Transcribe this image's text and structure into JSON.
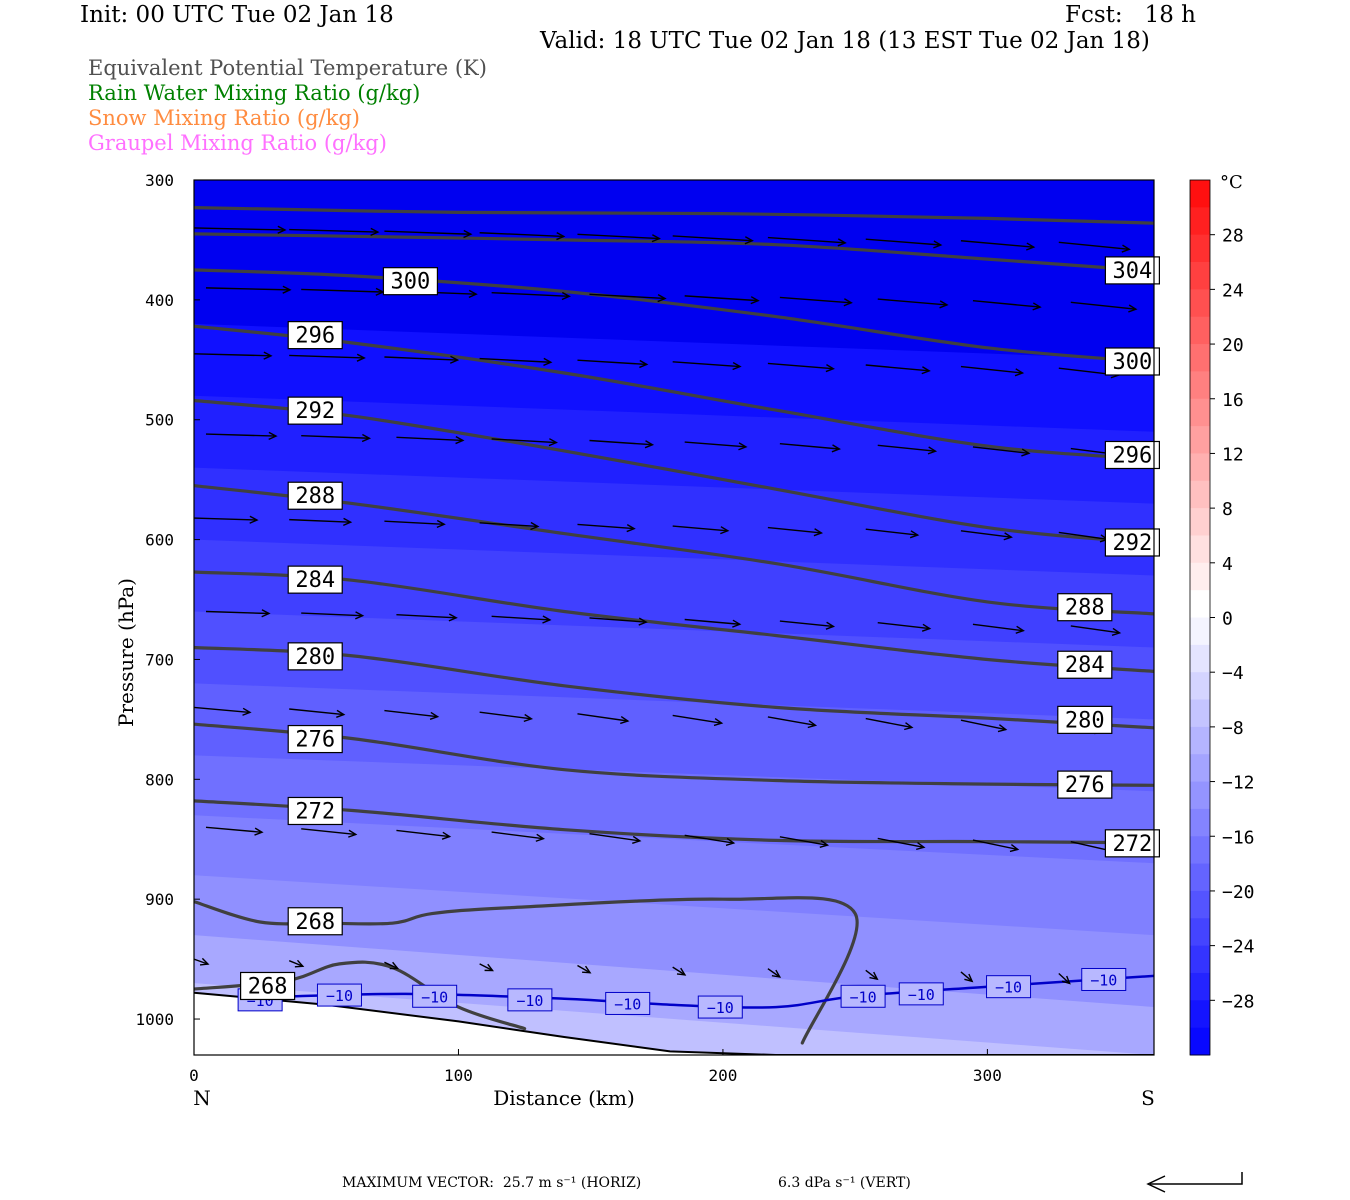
{
  "header": {
    "init": "Init: 00 UTC Tue 02 Jan 18",
    "fcst": "Fcst:   18 h",
    "valid": "Valid: 18 UTC Tue 02 Jan 18 (13 EST Tue 02 Jan 18)"
  },
  "legend": [
    {
      "label": "Equivalent Potential Temperature (K)",
      "color": "#505050"
    },
    {
      "label": "Rain Water Mixing Ratio (g/kg)",
      "color": "#008000"
    },
    {
      "label": "Snow Mixing Ratio (g/kg)",
      "color": "#ff8c40"
    },
    {
      "label": "Graupel Mixing Ratio (g/kg)",
      "color": "#ff70ff"
    }
  ],
  "footer": {
    "max_vector": "MAXIMUM VECTOR:  25.7 m s⁻¹ (HORIZ)",
    "vert": "6.3 dPa s⁻¹ (VERT)"
  },
  "chart_data": {
    "type": "cross-section",
    "xlabel": "Distance (km)",
    "ylabel": "Pressure (hPa)",
    "xlim": [
      0,
      363
    ],
    "ylim": [
      1030,
      300
    ],
    "y_log": false,
    "x_ticks": [
      0,
      100,
      200,
      300
    ],
    "y_ticks": [
      300,
      400,
      500,
      600,
      700,
      800,
      900,
      1000
    ],
    "x_end_labels": {
      "left": "N",
      "right": "S"
    },
    "colorbar": {
      "unit": "°C",
      "tick_labels": [
        "28",
        "24",
        "20",
        "16",
        "12",
        "8",
        "4",
        "0",
        "−4",
        "−8",
        "−12",
        "−16",
        "−20",
        "−24",
        "−28"
      ],
      "tick_values": [
        28,
        24,
        20,
        16,
        12,
        8,
        4,
        0,
        -4,
        -8,
        -12,
        -16,
        -20,
        -24,
        -28
      ],
      "bins": [
        {
          "lo": 30,
          "hi": 32,
          "color": "#ff1010"
        },
        {
          "lo": 28,
          "hi": 30,
          "color": "#ff2020"
        },
        {
          "lo": 26,
          "hi": 28,
          "color": "#ff3030"
        },
        {
          "lo": 24,
          "hi": 26,
          "color": "#ff4040"
        },
        {
          "lo": 22,
          "hi": 24,
          "color": "#ff5050"
        },
        {
          "lo": 20,
          "hi": 22,
          "color": "#ff6060"
        },
        {
          "lo": 18,
          "hi": 20,
          "color": "#ff7070"
        },
        {
          "lo": 16,
          "hi": 18,
          "color": "#ff8080"
        },
        {
          "lo": 14,
          "hi": 16,
          "color": "#ff9090"
        },
        {
          "lo": 12,
          "hi": 14,
          "color": "#ffa0a0"
        },
        {
          "lo": 10,
          "hi": 12,
          "color": "#ffb0b0"
        },
        {
          "lo": 8,
          "hi": 10,
          "color": "#ffc0c0"
        },
        {
          "lo": 6,
          "hi": 8,
          "color": "#ffd0d0"
        },
        {
          "lo": 4,
          "hi": 6,
          "color": "#ffe0e0"
        },
        {
          "lo": 2,
          "hi": 4,
          "color": "#ffeeee"
        },
        {
          "lo": 0,
          "hi": 2,
          "color": "#ffffff"
        },
        {
          "lo": -2,
          "hi": 0,
          "color": "#f4f4ff"
        },
        {
          "lo": -4,
          "hi": -2,
          "color": "#e4e4ff"
        },
        {
          "lo": -6,
          "hi": -4,
          "color": "#d4d4ff"
        },
        {
          "lo": -8,
          "hi": -6,
          "color": "#c4c4ff"
        },
        {
          "lo": -10,
          "hi": -8,
          "color": "#b4b4ff"
        },
        {
          "lo": -12,
          "hi": -10,
          "color": "#a4a4ff"
        },
        {
          "lo": -14,
          "hi": -12,
          "color": "#9494ff"
        },
        {
          "lo": -16,
          "hi": -14,
          "color": "#8484ff"
        },
        {
          "lo": -18,
          "hi": -16,
          "color": "#7474ff"
        },
        {
          "lo": -20,
          "hi": -18,
          "color": "#6464ff"
        },
        {
          "lo": -22,
          "hi": -20,
          "color": "#5454ff"
        },
        {
          "lo": -24,
          "hi": -22,
          "color": "#4444ff"
        },
        {
          "lo": -26,
          "hi": -24,
          "color": "#3434ff"
        },
        {
          "lo": -28,
          "hi": -26,
          "color": "#2424ff"
        },
        {
          "lo": -30,
          "hi": -28,
          "color": "#1414ff"
        },
        {
          "lo": -32,
          "hi": -30,
          "color": "#0808ff"
        }
      ]
    },
    "temperature_layers": [
      {
        "temp": -14,
        "left": 970,
        "right": 1030,
        "color": "#c0c0ff"
      },
      {
        "temp": -16,
        "left": 930,
        "right": 990,
        "color": "#a8a8ff"
      },
      {
        "temp": -18,
        "left": 880,
        "right": 930,
        "color": "#9090ff"
      },
      {
        "temp": -20,
        "left": 830,
        "right": 870,
        "color": "#8080ff"
      },
      {
        "temp": -22,
        "left": 780,
        "right": 810,
        "color": "#7070ff"
      },
      {
        "temp": -24,
        "left": 720,
        "right": 750,
        "color": "#6060ff"
      },
      {
        "temp": -26,
        "left": 660,
        "right": 690,
        "color": "#5050ff"
      },
      {
        "temp": -28,
        "left": 600,
        "right": 630,
        "color": "#4040ff"
      },
      {
        "temp": -30,
        "left": 540,
        "right": 570,
        "color": "#3030ff"
      },
      {
        "temp": -32,
        "left": 480,
        "right": 510,
        "color": "#2020ff"
      },
      {
        "temp": -34,
        "left": 420,
        "right": 450,
        "color": "#1010ff"
      }
    ],
    "theta_e_contours": [
      {
        "level": 304,
        "points": [
          [
            0,
            323
          ],
          [
            100,
            327
          ],
          [
            200,
            328
          ],
          [
            300,
            332
          ],
          [
            363,
            336
          ]
        ]
      },
      {
        "level": 304,
        "points": [
          [
            0,
            345
          ],
          [
            60,
            347
          ],
          [
            140,
            350
          ],
          [
            220,
            354
          ],
          [
            300,
            366
          ],
          [
            363,
            376
          ]
        ]
      },
      {
        "level": 300,
        "points": [
          [
            0,
            375
          ],
          [
            60,
            380
          ],
          [
            140,
            393
          ],
          [
            220,
            414
          ],
          [
            300,
            440
          ],
          [
            363,
            452
          ]
        ]
      },
      {
        "level": 296,
        "points": [
          [
            0,
            422
          ],
          [
            60,
            436
          ],
          [
            140,
            461
          ],
          [
            220,
            492
          ],
          [
            300,
            522
          ],
          [
            363,
            533
          ]
        ]
      },
      {
        "level": 292,
        "points": [
          [
            0,
            484
          ],
          [
            60,
            497
          ],
          [
            140,
            526
          ],
          [
            220,
            558
          ],
          [
            300,
            590
          ],
          [
            363,
            603
          ]
        ]
      },
      {
        "level": 288,
        "points": [
          [
            0,
            555
          ],
          [
            60,
            570
          ],
          [
            140,
            595
          ],
          [
            220,
            620
          ],
          [
            300,
            652
          ],
          [
            363,
            662
          ]
        ]
      },
      {
        "level": 284,
        "points": [
          [
            0,
            627
          ],
          [
            60,
            634
          ],
          [
            140,
            660
          ],
          [
            220,
            680
          ],
          [
            300,
            700
          ],
          [
            363,
            710
          ]
        ]
      },
      {
        "level": 280,
        "points": [
          [
            0,
            690
          ],
          [
            60,
            697
          ],
          [
            140,
            722
          ],
          [
            220,
            740
          ],
          [
            300,
            749
          ],
          [
            363,
            757
          ]
        ]
      },
      {
        "level": 276,
        "points": [
          [
            0,
            754
          ],
          [
            60,
            766
          ],
          [
            140,
            792
          ],
          [
            220,
            801
          ],
          [
            300,
            804
          ],
          [
            363,
            805
          ]
        ]
      },
      {
        "level": 272,
        "points": [
          [
            0,
            818
          ],
          [
            60,
            826
          ],
          [
            140,
            842
          ],
          [
            220,
            851
          ],
          [
            300,
            852
          ],
          [
            363,
            853
          ]
        ]
      },
      {
        "level": 268,
        "points": [
          [
            0,
            902
          ],
          [
            25,
            919
          ],
          [
            50,
            920
          ],
          [
            75,
            920
          ],
          [
            90,
            912
          ],
          [
            120,
            907
          ],
          [
            200,
            900
          ],
          [
            250,
            912
          ],
          [
            230,
            1020
          ]
        ]
      },
      {
        "level": 268,
        "points": [
          [
            0,
            975
          ],
          [
            35,
            968
          ],
          [
            55,
            954
          ],
          [
            75,
            957
          ],
          [
            100,
            990
          ],
          [
            125,
            1008
          ]
        ]
      }
    ],
    "theta_e_labels": [
      {
        "text": "300",
        "x": 72,
        "p": 384
      },
      {
        "text": "296",
        "x": 36,
        "p": 429
      },
      {
        "text": "292",
        "x": 36,
        "p": 492
      },
      {
        "text": "288",
        "x": 36,
        "p": 563
      },
      {
        "text": "284",
        "x": 36,
        "p": 633
      },
      {
        "text": "280",
        "x": 36,
        "p": 697
      },
      {
        "text": "276",
        "x": 36,
        "p": 766
      },
      {
        "text": "272",
        "x": 36,
        "p": 826
      },
      {
        "text": "268",
        "x": 36,
        "p": 918
      },
      {
        "text": "268",
        "x": 18,
        "p": 972
      },
      {
        "text": "304",
        "x": 345,
        "p": 375
      },
      {
        "text": "300",
        "x": 345,
        "p": 451
      },
      {
        "text": "296",
        "x": 345,
        "p": 529
      },
      {
        "text": "292",
        "x": 345,
        "p": 602
      },
      {
        "text": "288",
        "x": 327,
        "p": 656
      },
      {
        "text": "284",
        "x": 327,
        "p": 704
      },
      {
        "text": "280",
        "x": 327,
        "p": 750
      },
      {
        "text": "276",
        "x": 327,
        "p": 804
      },
      {
        "text": "272",
        "x": 345,
        "p": 853
      }
    ],
    "isotherm_minus10": {
      "level": -10,
      "color": "#0000c8",
      "points": [
        [
          25,
          982
        ],
        [
          80,
          979
        ],
        [
          140,
          983
        ],
        [
          180,
          988
        ],
        [
          220,
          990
        ],
        [
          250,
          981
        ],
        [
          300,
          973
        ],
        [
          363,
          964
        ]
      ],
      "labels": [
        [
          25,
          984
        ],
        [
          55,
          980
        ],
        [
          91,
          981
        ],
        [
          127,
          984
        ],
        [
          164,
          987
        ],
        [
          199,
          990
        ],
        [
          253,
          981
        ],
        [
          275,
          979
        ],
        [
          308,
          973
        ],
        [
          344,
          967
        ]
      ]
    },
    "terrain": [
      [
        0,
        978
      ],
      [
        50,
        988
      ],
      [
        100,
        1002
      ],
      [
        140,
        1015
      ],
      [
        180,
        1027
      ],
      [
        220,
        1030
      ],
      [
        363,
        1030
      ]
    ],
    "wind_vectors_rows": [
      {
        "p": 340,
        "u": 13
      },
      {
        "p": 390,
        "u": 12
      },
      {
        "p": 445,
        "u": 11
      },
      {
        "p": 512,
        "u": 10
      },
      {
        "p": 582,
        "u": 9
      },
      {
        "p": 660,
        "u": 9
      },
      {
        "p": 740,
        "u": 8
      },
      {
        "p": 840,
        "u": 8
      },
      {
        "p": 950,
        "u": 2
      }
    ]
  }
}
